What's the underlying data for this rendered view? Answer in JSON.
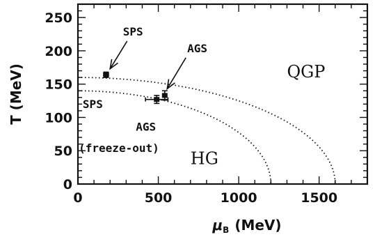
{
  "chart_data": {
    "type": "scatter",
    "xlabel_symbol": "μ",
    "xlabel_subscript": "B",
    "xlabel_unit": "(MeV)",
    "ylabel": "T (MeV)",
    "xlim": [
      0,
      1800
    ],
    "ylim": [
      0,
      270
    ],
    "x_ticks": [
      "0",
      "500",
      "1000",
      "1500"
    ],
    "x_tick_values": [
      0,
      500,
      1000,
      1500
    ],
    "y_ticks": [
      "0",
      "50",
      "100",
      "150",
      "200",
      "250"
    ],
    "y_tick_values": [
      0,
      50,
      100,
      150,
      200,
      250
    ],
    "grid": false,
    "curves": [
      {
        "T0": 160,
        "mu_end": 1600
      },
      {
        "T0": 140,
        "mu_end": 1200
      }
    ],
    "points": [
      {
        "x": 175,
        "y": 164,
        "yerr": 4,
        "xerr": 15
      },
      {
        "x": 540,
        "y": 133,
        "yerr": 7,
        "xerr": 10
      },
      {
        "x": 490,
        "y": 127,
        "yerr": 6,
        "xerr": 70
      }
    ],
    "annotations": [
      {
        "text": "SPS",
        "x": 280,
        "y": 223,
        "style": "small",
        "arrow_to": [
          200,
          173
        ]
      },
      {
        "text": "AGS",
        "x": 680,
        "y": 198,
        "style": "small",
        "arrow_to": [
          555,
          143
        ]
      },
      {
        "text": "QGP",
        "x": 1300,
        "y": 160,
        "style": "big"
      },
      {
        "text": "SPS",
        "x": 30,
        "y": 114,
        "style": "small"
      },
      {
        "text": "AGS",
        "x": 360,
        "y": 80,
        "style": "small"
      },
      {
        "text": "(freeze-out)",
        "x": 5,
        "y": 48,
        "style": "small"
      },
      {
        "text": "HG",
        "x": 700,
        "y": 30,
        "style": "big"
      }
    ]
  }
}
